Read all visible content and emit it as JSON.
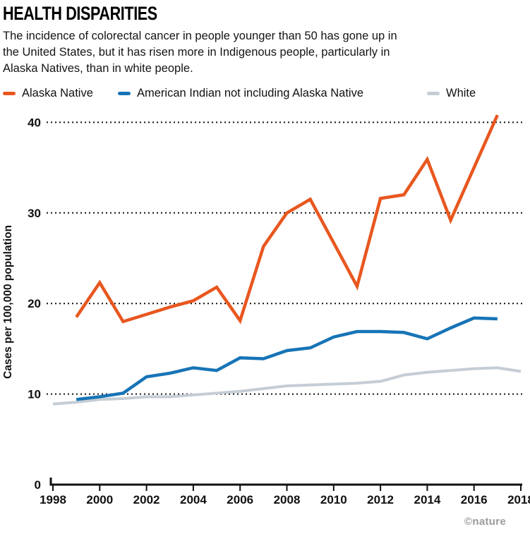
{
  "header": {
    "title": "HEALTH DISPARITIES",
    "subtitle_lines": [
      "The incidence of colorectal cancer in people younger than 50 has gone up in",
      "the United States, but it has risen more in Indigenous people, particularly in",
      "Alaska Natives, than in white people."
    ]
  },
  "legend": {
    "position": "top",
    "items": [
      {
        "label": "Alaska Native",
        "color": "#E8571F"
      },
      {
        "label": "American Indian not including Alaska Native",
        "color": "#1774B6"
      },
      {
        "label": "White",
        "color": "#C5CDD5"
      }
    ]
  },
  "chart_data": {
    "type": "line",
    "title": "HEALTH DISPARITIES",
    "xlabel": "",
    "ylabel": "Cases per 100,000 population",
    "xlim": [
      1998,
      2018
    ],
    "ylim": [
      0,
      42
    ],
    "xticks": [
      1998,
      2000,
      2002,
      2004,
      2006,
      2008,
      2010,
      2012,
      2014,
      2016,
      2018
    ],
    "yticks": [
      0,
      10,
      20,
      30,
      40
    ],
    "grid": "horizontal dotted lines at y = 10, 20, 30, 40",
    "legend_position": "top",
    "series": [
      {
        "name": "White",
        "color": "#C5CDD5",
        "x": [
          1998,
          1999,
          2000,
          2001,
          2002,
          2003,
          2004,
          2005,
          2006,
          2007,
          2008,
          2009,
          2010,
          2011,
          2012,
          2013,
          2014,
          2015,
          2016,
          2017,
          2018
        ],
        "values": [
          8.9,
          9.1,
          9.4,
          9.5,
          9.7,
          9.7,
          9.9,
          10.1,
          10.3,
          10.6,
          10.9,
          11.0,
          11.1,
          11.2,
          11.4,
          12.1,
          12.4,
          12.6,
          12.8,
          12.9,
          12.5
        ]
      },
      {
        "name": "American Indian not including Alaska Native",
        "color": "#1774B6",
        "x": [
          1999,
          2000,
          2001,
          2002,
          2003,
          2004,
          2005,
          2006,
          2007,
          2008,
          2009,
          2010,
          2011,
          2012,
          2013,
          2014,
          2015,
          2016,
          2017
        ],
        "values": [
          9.4,
          9.7,
          10.1,
          11.9,
          12.3,
          12.9,
          12.6,
          14.0,
          13.9,
          14.8,
          15.1,
          16.3,
          16.9,
          16.9,
          16.8,
          16.1,
          17.3,
          18.4,
          18.3
        ]
      },
      {
        "name": "Alaska Native",
        "color": "#E8571F",
        "x": [
          1999,
          2000,
          2001,
          2002,
          2003,
          2004,
          2005,
          2006,
          2007,
          2008,
          2009,
          2010,
          2011,
          2012,
          2013,
          2014,
          2015,
          2016,
          2017
        ],
        "values": [
          18.5,
          22.3,
          18.0,
          18.8,
          19.6,
          20.3,
          21.8,
          18.1,
          26.3,
          30.0,
          31.5,
          26.7,
          21.9,
          31.6,
          32.0,
          35.9,
          29.2,
          35.0,
          40.8
        ]
      }
    ]
  },
  "credit": "©nature"
}
